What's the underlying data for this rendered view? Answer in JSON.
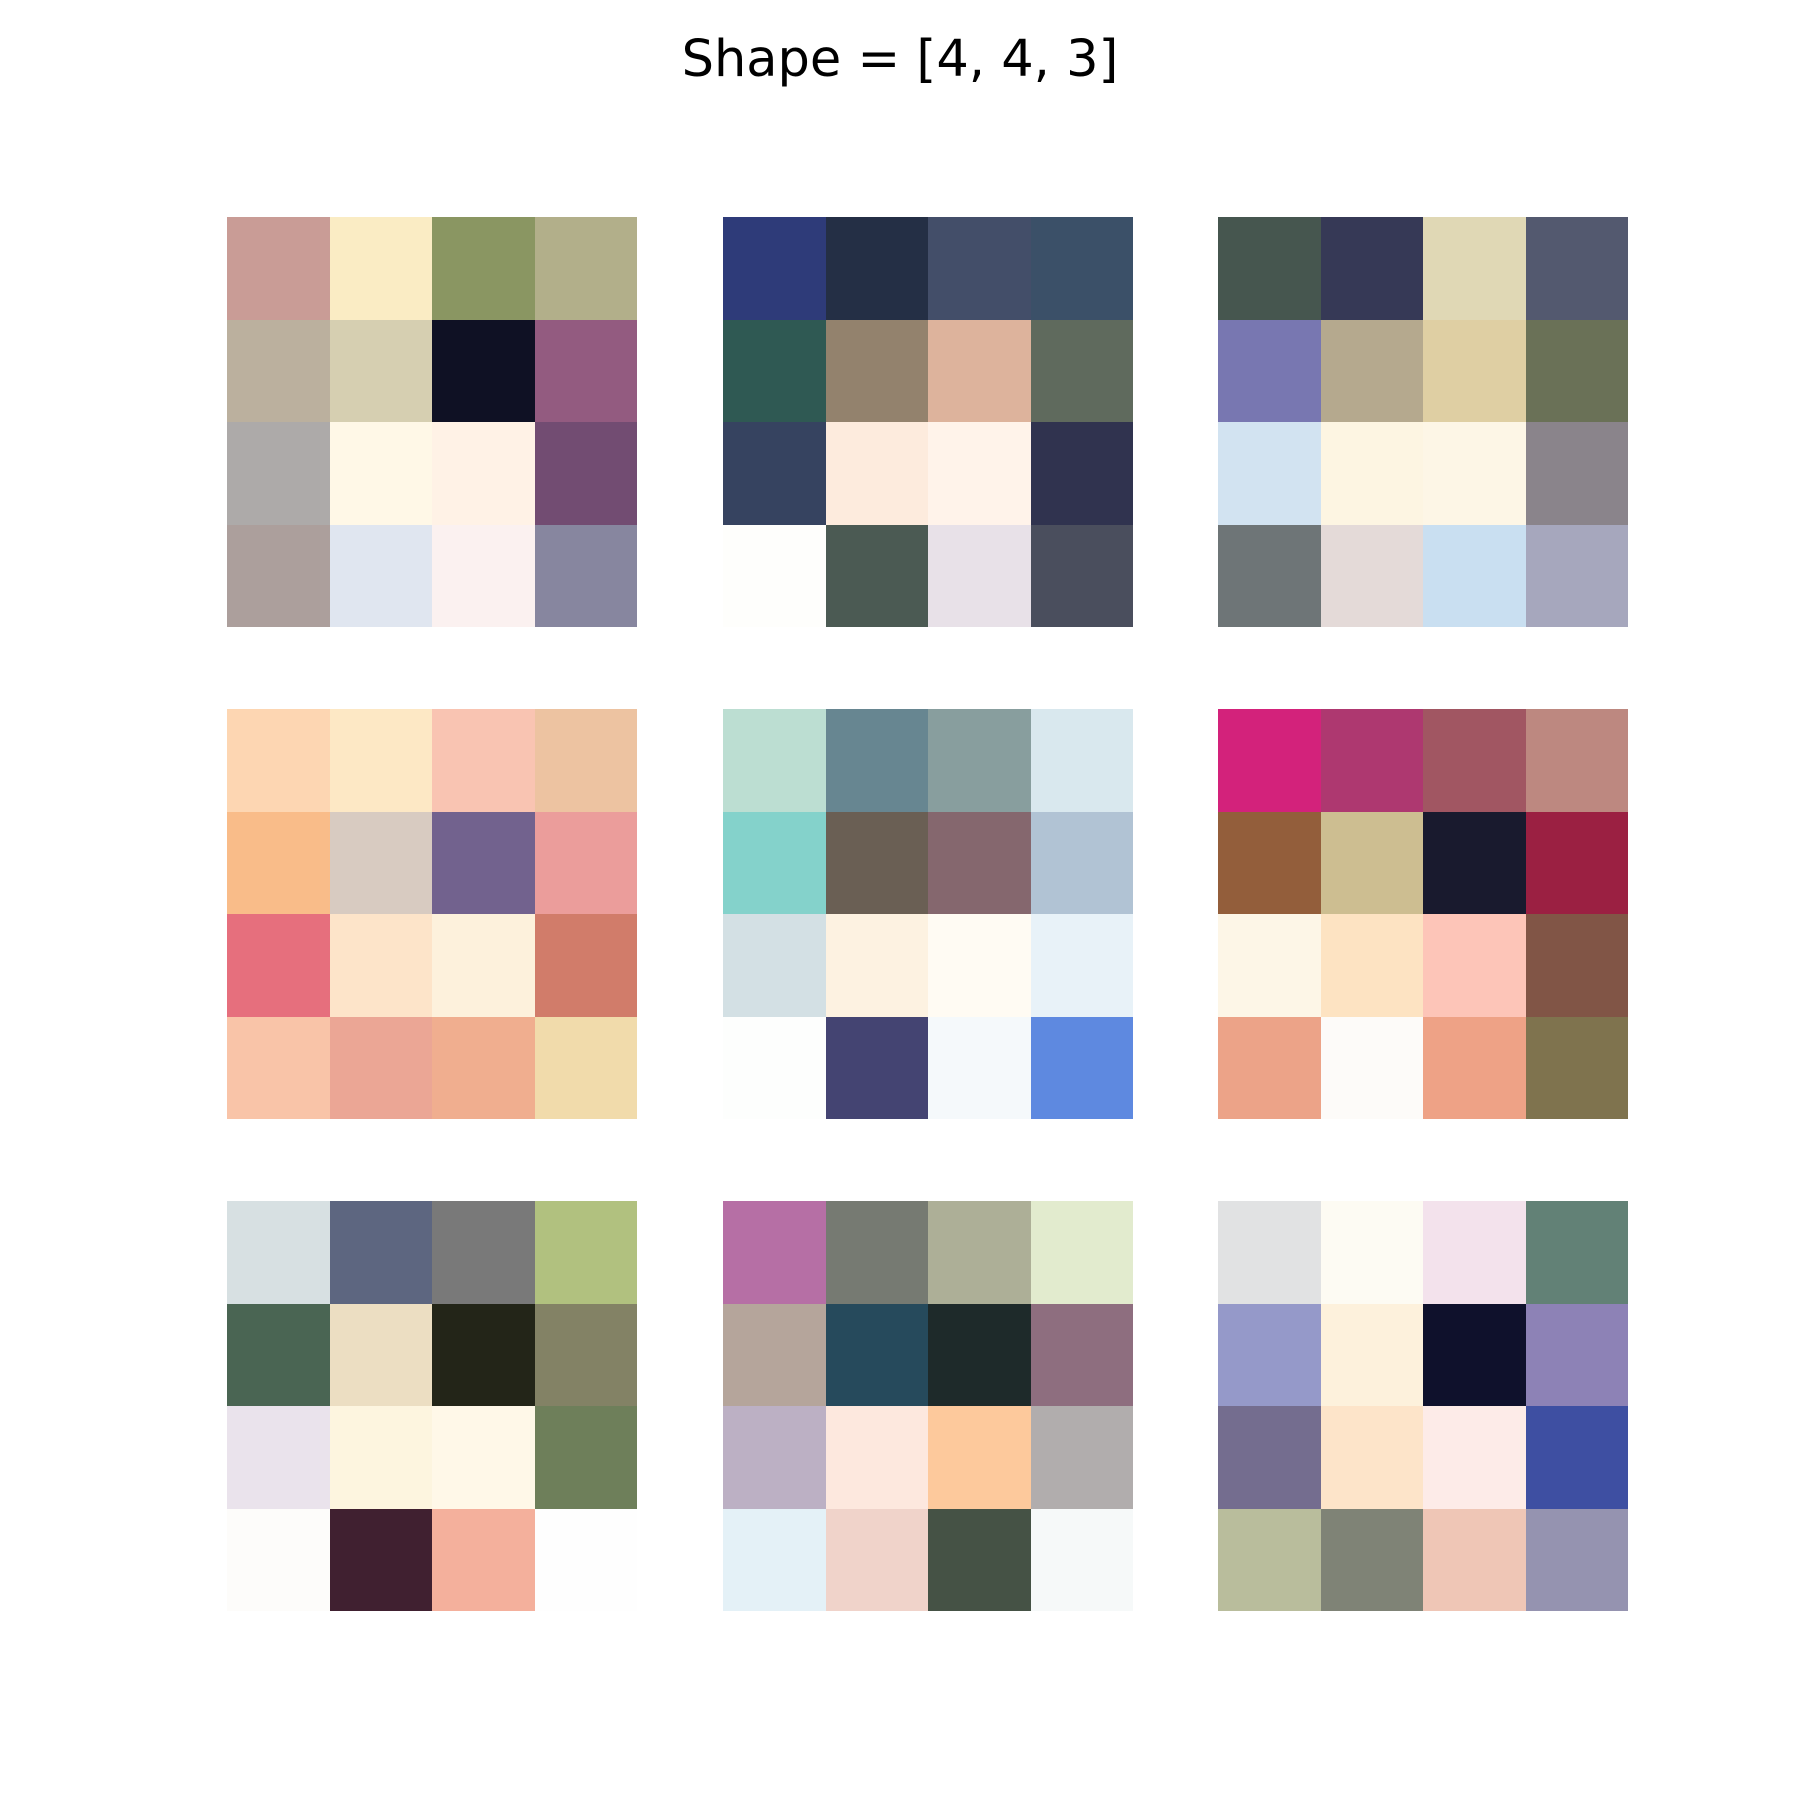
{
  "title": "Shape = [4, 4, 3]",
  "chart_data": {
    "type": "heatmap",
    "title": "Shape = [4, 4, 3]",
    "layout": "3x3 grid of 4x4 RGB images",
    "images": [
      [
        [
          "#c99c96",
          "#faecc4",
          "#8a9662",
          "#b2af8a"
        ],
        [
          "#bbb09e",
          "#d6cfb1",
          "#0f1124",
          "#935b80"
        ],
        [
          "#adaaa9",
          "#fff8e7",
          "#fff2e6",
          "#724c72"
        ],
        [
          "#ac9f9c",
          "#e0e6f0",
          "#fbf1f0",
          "#87869f"
        ]
      ],
      [
        [
          "#2e3b79",
          "#242f45",
          "#434e69",
          "#3b5068"
        ],
        [
          "#2f5953",
          "#93826d",
          "#ddb39c",
          "#5f6a5d"
        ],
        [
          "#364360",
          "#fdebdd",
          "#fff3ea",
          "#30334f"
        ],
        [
          "#fefefc",
          "#4b5a53",
          "#e8e1e8",
          "#4a4e5d"
        ]
      ],
      [
        [
          "#46564f",
          "#363956",
          "#e0d8b5",
          "#53596f"
        ],
        [
          "#7877b1",
          "#b5a98e",
          "#dfcfa3",
          "#6a7157"
        ],
        [
          "#d2e3f1",
          "#fdf5e2",
          "#fdf6e6",
          "#8a848b"
        ],
        [
          "#6e7577",
          "#e4dad8",
          "#c9dff1",
          "#a6a7bd"
        ]
      ],
      [
        [
          "#fdd6b2",
          "#fde8c5",
          "#f9c4b2",
          "#edc3a1"
        ],
        [
          "#f9bc89",
          "#d8cbc1",
          "#72628e",
          "#eb9d9b"
        ],
        [
          "#e66f7d",
          "#fde4c9",
          "#fdf1dc",
          "#d17c6a"
        ],
        [
          "#f9c4a8",
          "#eba695",
          "#f0ae8f",
          "#f1dbab"
        ]
      ],
      [
        [
          "#bcded2",
          "#678691",
          "#889e9e",
          "#d9e8ee"
        ],
        [
          "#84d2cb",
          "#6a5f54",
          "#85676e",
          "#b1c3d4"
        ],
        [
          "#d3e0e4",
          "#fdf2e1",
          "#fffbf3",
          "#e8f2f8"
        ],
        [
          "#fdfefd",
          "#444472",
          "#f5f9fb",
          "#5e89e0"
        ]
      ],
      [
        [
          "#d3227b",
          "#ae3870",
          "#a15662",
          "#bd8880"
        ],
        [
          "#935e3b",
          "#cdbe91",
          "#191a2e",
          "#9b2042"
        ],
        [
          "#fdf6e7",
          "#fde3c2",
          "#fdc5b8",
          "#815546"
        ],
        [
          "#eca388",
          "#fdfbf9",
          "#eea286",
          "#7f734e"
        ]
      ],
      [
        [
          "#d7e0e2",
          "#5d6680",
          "#797979",
          "#b1c17f"
        ],
        [
          "#4a6553",
          "#ecdec2",
          "#232518",
          "#838265"
        ],
        [
          "#eae3ec",
          "#fdf5df",
          "#fff8e8",
          "#6e7f5a"
        ],
        [
          "#fdfcfa",
          "#402030",
          "#f4b09c",
          "#fefefe"
        ]
      ],
      [
        [
          "#b66fa5",
          "#767a72",
          "#adaf97",
          "#e2ebce"
        ],
        [
          "#b5a59b",
          "#264a5c",
          "#1e2a2a",
          "#8e6e7f"
        ],
        [
          "#bcb0c4",
          "#fde8de",
          "#fdc99c",
          "#b1adad"
        ],
        [
          "#e4f1f7",
          "#f0d3ca",
          "#455245",
          "#f6f9f9"
        ]
      ],
      [
        [
          "#e1e2e3",
          "#fdfbf3",
          "#f3e2ec",
          "#628176"
        ],
        [
          "#9599c9",
          "#fdf1dc",
          "#0f112c",
          "#8d82b6"
        ],
        [
          "#746d8f",
          "#fde4c9",
          "#fdebe8",
          "#3e4fa2"
        ],
        [
          "#b9bd9c",
          "#7f8376",
          "#efc6b6",
          "#9593b0"
        ]
      ]
    ]
  }
}
